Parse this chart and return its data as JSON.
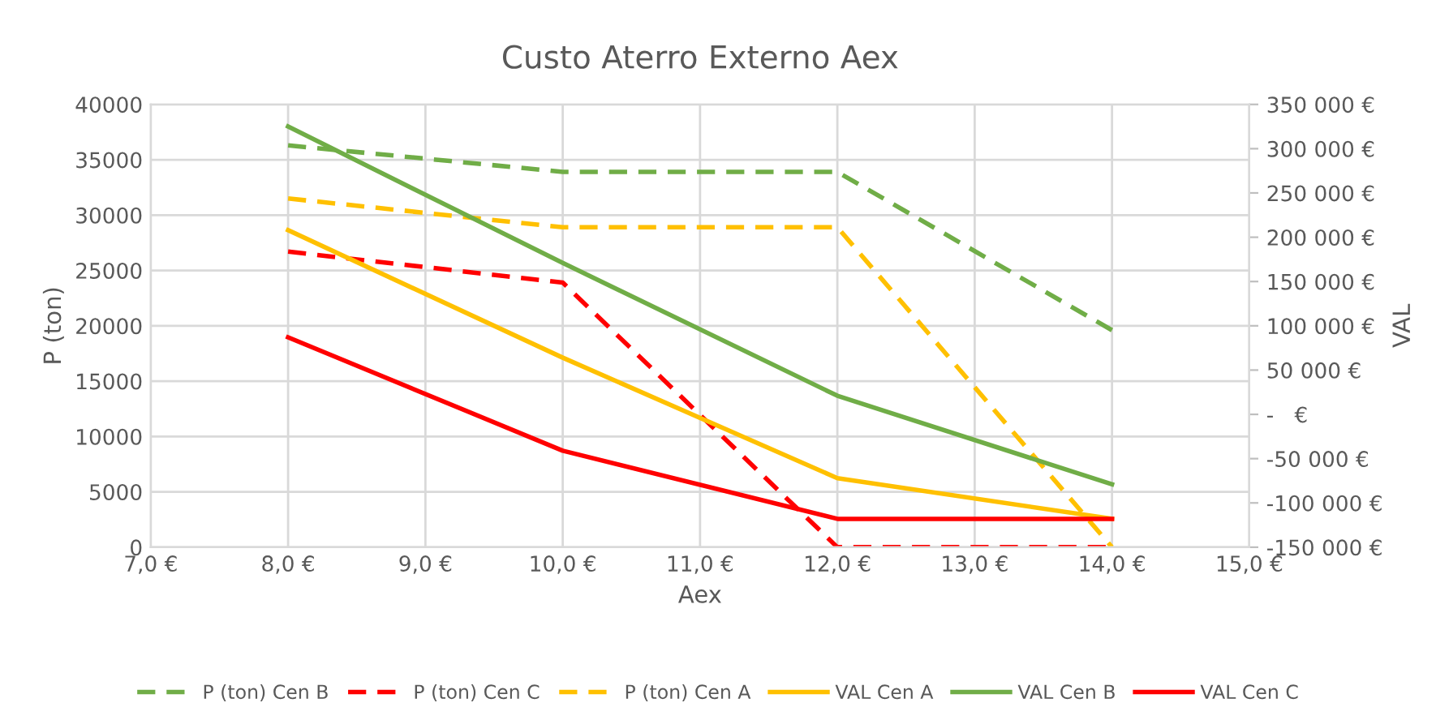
{
  "chart_data": {
    "type": "line",
    "title": "Custo Aterro Externo Aex",
    "xlabel": "Aex",
    "ylabel": "P (ton)",
    "y2label": "VAL",
    "x": [
      8,
      10,
      12,
      14
    ],
    "xlim": [
      7,
      15
    ],
    "xticks": [
      {
        "value": 7,
        "label": "7,0 €"
      },
      {
        "value": 8,
        "label": "8,0 €"
      },
      {
        "value": 9,
        "label": "9,0 €"
      },
      {
        "value": 10,
        "label": "10,0 €"
      },
      {
        "value": 11,
        "label": "11,0 €"
      },
      {
        "value": 12,
        "label": "12,0 €"
      },
      {
        "value": 13,
        "label": "13,0 €"
      },
      {
        "value": 14,
        "label": "14,0 €"
      },
      {
        "value": 15,
        "label": "15,0 €"
      }
    ],
    "ylim": [
      0,
      40000
    ],
    "yticks": [
      0,
      5000,
      10000,
      15000,
      20000,
      25000,
      30000,
      35000,
      40000
    ],
    "y2lim": [
      -150000,
      350000
    ],
    "y2ticks": [
      {
        "value": -150000,
        "label": "-150 000 €"
      },
      {
        "value": -100000,
        "label": "-100 000 €"
      },
      {
        "value": -50000,
        "label": "-50 000 €"
      },
      {
        "value": 0,
        "label": "-   €"
      },
      {
        "value": 50000,
        "label": "50 000 €"
      },
      {
        "value": 100000,
        "label": "100 000 €"
      },
      {
        "value": 150000,
        "label": "150 000 €"
      },
      {
        "value": 200000,
        "label": "200 000 €"
      },
      {
        "value": 250000,
        "label": "250 000 €"
      },
      {
        "value": 300000,
        "label": "300 000 €"
      },
      {
        "value": 350000,
        "label": "350 000 €"
      }
    ],
    "grid": true,
    "legend": "bottom",
    "marker": "none",
    "series": [
      {
        "name": "P (ton) Cen B",
        "color": "#70ad47",
        "line_style": "dashed",
        "values": [
          36300,
          33900,
          33900,
          19600
        ]
      },
      {
        "name": "P (ton) Cen C",
        "color": "#ff0000",
        "line_style": "dashed",
        "values": [
          26700,
          23900,
          0,
          0
        ]
      },
      {
        "name": "P (ton) Cen A",
        "color": "#ffc000",
        "line_style": "dashed",
        "values": [
          31500,
          28900,
          28900,
          0
        ]
      },
      {
        "name": "VAL Cen A",
        "color": "#ffc000",
        "line_style": "solid",
        "axis": "y2",
        "values": [
          208000,
          64000,
          -72000,
          -118000
        ]
      },
      {
        "name": "VAL Cen B",
        "color": "#70ad47",
        "line_style": "solid",
        "axis": "y2",
        "values": [
          325000,
          171000,
          21000,
          -79000
        ]
      },
      {
        "name": "VAL Cen C",
        "color": "#ff0000",
        "line_style": "solid",
        "axis": "y2",
        "values": [
          87000,
          -41000,
          -118000,
          -118000
        ]
      }
    ]
  }
}
